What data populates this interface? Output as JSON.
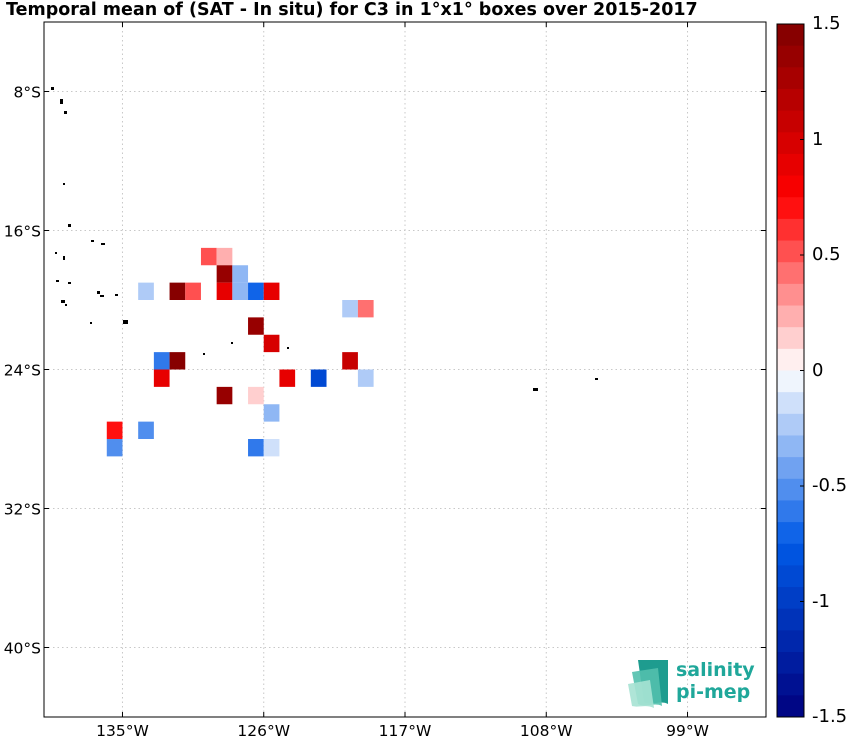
{
  "title": "Temporal mean of (SAT - In situ) for C3 in 1°x1° boxes over 2015-2017",
  "map": {
    "lon_min": -140,
    "lon_max": -94,
    "lat_min": -44,
    "lat_max": -4,
    "x_ticks": [
      {
        "value": -135,
        "label": "135°W"
      },
      {
        "value": -126,
        "label": "126°W"
      },
      {
        "value": -117,
        "label": "117°W"
      },
      {
        "value": -108,
        "label": "108°W"
      },
      {
        "value": -99,
        "label": "99°W"
      }
    ],
    "y_ticks": [
      {
        "value": -8,
        "label": "8°S"
      },
      {
        "value": -16,
        "label": "16°S"
      },
      {
        "value": -24,
        "label": "24°S"
      },
      {
        "value": -32,
        "label": "32°S"
      },
      {
        "value": -40,
        "label": "40°S"
      }
    ],
    "grid": true,
    "cells": [
      {
        "lon": -129.5,
        "lat": -17.5,
        "value": 0.5
      },
      {
        "lon": -128.5,
        "lat": -17.5,
        "value": 0.2
      },
      {
        "lon": -128.5,
        "lat": -18.5,
        "value": 1.4
      },
      {
        "lon": -127.5,
        "lat": -18.5,
        "value": -0.3
      },
      {
        "lon": -133.5,
        "lat": -19.5,
        "value": -0.2
      },
      {
        "lon": -131.5,
        "lat": -19.5,
        "value": 1.5
      },
      {
        "lon": -130.5,
        "lat": -19.5,
        "value": 0.5
      },
      {
        "lon": -128.5,
        "lat": -19.5,
        "value": 0.9
      },
      {
        "lon": -127.5,
        "lat": -19.5,
        "value": -0.3
      },
      {
        "lon": -126.5,
        "lat": -19.5,
        "value": -0.7
      },
      {
        "lon": -125.5,
        "lat": -19.5,
        "value": 0.9
      },
      {
        "lon": -120.5,
        "lat": -20.5,
        "value": -0.2
      },
      {
        "lon": -119.5,
        "lat": -20.5,
        "value": 0.4
      },
      {
        "lon": -126.5,
        "lat": -21.5,
        "value": 1.4
      },
      {
        "lon": -125.5,
        "lat": -22.5,
        "value": 1.0
      },
      {
        "lon": -132.5,
        "lat": -23.5,
        "value": -0.6
      },
      {
        "lon": -131.5,
        "lat": -23.5,
        "value": 1.5
      },
      {
        "lon": -120.5,
        "lat": -23.5,
        "value": 1.1
      },
      {
        "lon": -132.5,
        "lat": -24.5,
        "value": 0.9
      },
      {
        "lon": -124.5,
        "lat": -24.5,
        "value": 0.9
      },
      {
        "lon": -122.5,
        "lat": -24.5,
        "value": -0.9
      },
      {
        "lon": -119.5,
        "lat": -24.5,
        "value": -0.2
      },
      {
        "lon": -128.5,
        "lat": -25.5,
        "value": 1.4
      },
      {
        "lon": -126.5,
        "lat": -25.5,
        "value": 0.1
      },
      {
        "lon": -125.5,
        "lat": -26.5,
        "value": -0.3
      },
      {
        "lon": -135.5,
        "lat": -27.5,
        "value": 0.7
      },
      {
        "lon": -133.5,
        "lat": -27.5,
        "value": -0.5
      },
      {
        "lon": -135.5,
        "lat": -28.5,
        "value": -0.5
      },
      {
        "lon": -126.5,
        "lat": -28.5,
        "value": -0.6
      },
      {
        "lon": -125.5,
        "lat": -28.5,
        "value": -0.1
      }
    ]
  },
  "colorbar": {
    "min": -1.5,
    "max": 1.5,
    "levels": 32,
    "tick_labels": [
      {
        "value": 1.5,
        "label": "1.5"
      },
      {
        "value": 1,
        "label": "1"
      },
      {
        "value": 0.5,
        "label": "0.5"
      },
      {
        "value": 0,
        "label": "0"
      },
      {
        "value": -0.5,
        "label": "-0.5"
      },
      {
        "value": -1,
        "label": "-1"
      },
      {
        "value": -1.5,
        "label": "-1.5"
      }
    ],
    "color_min": "#00007f",
    "color_mid": "#ffffff",
    "color_max": "#7f0000"
  },
  "logo": {
    "line1": "salinity",
    "line2": "pi-mep",
    "color": "#1fa79a"
  }
}
